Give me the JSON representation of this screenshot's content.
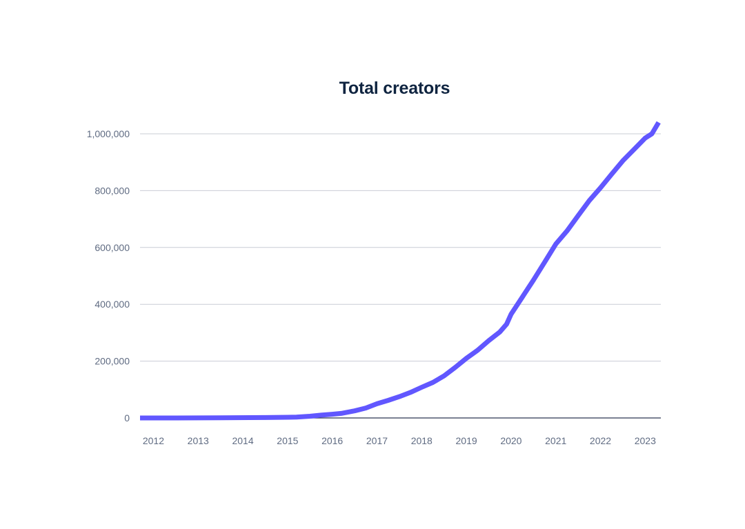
{
  "chart_data": {
    "type": "line",
    "title": "Total creators",
    "xlabel": "",
    "ylabel": "",
    "x_ticks": [
      "2012",
      "2013",
      "2014",
      "2015",
      "2016",
      "2017",
      "2018",
      "2019",
      "2020",
      "2021",
      "2022",
      "2023"
    ],
    "y_ticks": [
      "0",
      "200,000",
      "400,000",
      "600,000",
      "800,000",
      "1,000,000"
    ],
    "y_tick_values": [
      0,
      200000,
      400000,
      600000,
      800000,
      1000000
    ],
    "xlim": [
      2011.7,
      2023.35
    ],
    "ylim": [
      0,
      1000000
    ],
    "grid": true,
    "legend": "none",
    "color": "#6157ff",
    "series": [
      {
        "x": [
          2011.7,
          2012.5,
          2013.5,
          2014.5,
          2015.0,
          2015.2,
          2015.5,
          2015.75,
          2016.0,
          2016.2,
          2016.4,
          2016.5,
          2016.75,
          2017.0,
          2017.25,
          2017.5,
          2017.75,
          2018.0,
          2018.25,
          2018.5,
          2018.75,
          2019.0,
          2019.25,
          2019.5,
          2019.75,
          2019.9,
          2020.0,
          2020.25,
          2020.5,
          2020.75,
          2021.0,
          2021.25,
          2021.5,
          2021.75,
          2022.0,
          2022.25,
          2022.5,
          2022.75,
          2023.0,
          2023.15,
          2023.3
        ],
        "values": [
          0,
          0,
          500,
          1500,
          2500,
          3000,
          6000,
          10000,
          13000,
          16000,
          22000,
          25000,
          35000,
          50000,
          62000,
          75000,
          90000,
          108000,
          125000,
          148000,
          178000,
          210000,
          238000,
          272000,
          303000,
          330000,
          365000,
          425000,
          485000,
          548000,
          612000,
          658000,
          712000,
          765000,
          810000,
          858000,
          905000,
          945000,
          985000,
          1000000,
          1040000
        ]
      }
    ]
  }
}
